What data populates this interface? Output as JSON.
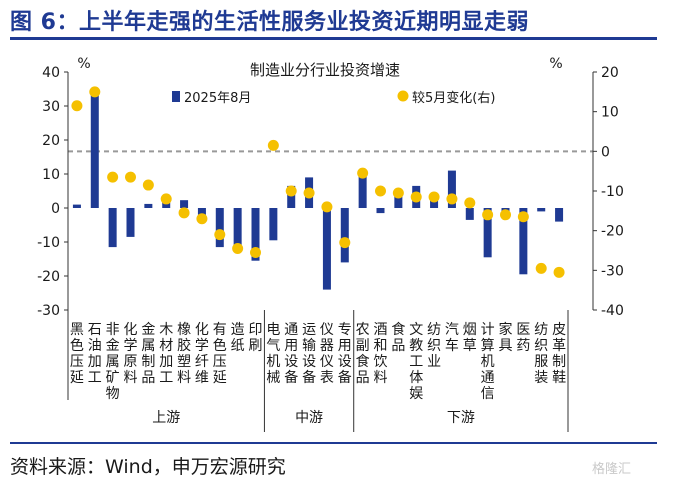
{
  "header": {
    "title": "图 6：上半年走强的生活性服务业投资近期明显走弱"
  },
  "footer": {
    "source": "资料来源：Wind，申万宏源研究",
    "watermark": "格隆汇"
  },
  "chart_data": {
    "type": "bar",
    "title": "制造业分行业投资增速",
    "ylabel_left": "%",
    "ylabel_right": "%",
    "ylim_left": [
      -30,
      40
    ],
    "ylim_right": [
      -40,
      20
    ],
    "yticks_left": [
      40,
      30,
      20,
      10,
      0,
      -10,
      -20,
      -30
    ],
    "yticks_right": [
      20,
      10,
      0,
      -10,
      -20,
      -30,
      -40
    ],
    "legend_position": "top",
    "categories": [
      "黑色压延",
      "石油加工",
      "非金属矿物",
      "化学原料",
      "金属制品",
      "木材加工",
      "橡胶塑料",
      "化学纤维",
      "有色压延",
      "造纸",
      "印刷",
      "电气机械",
      "通用设备",
      "运输设备",
      "仪器仪表",
      "专用设备",
      "农副食品",
      "酒和饮料",
      "食品",
      "文教工体娱",
      "纺织业",
      "汽车",
      "烟草",
      "计算机通信",
      "家具",
      "医药",
      "纺织服装",
      "皮革制鞋"
    ],
    "groups": [
      {
        "name": "上游",
        "start": 0,
        "end": 10
      },
      {
        "name": "中游",
        "start": 11,
        "end": 15
      },
      {
        "name": "下游",
        "start": 16,
        "end": 27
      }
    ],
    "series": [
      {
        "name": "2025年8月",
        "type": "bar",
        "axis": "left",
        "color": "#1f3a93",
        "values": [
          1,
          35,
          -11.5,
          -8.5,
          1.2,
          3,
          2.3,
          -2,
          -11.5,
          -11,
          -15.5,
          -9.5,
          6.5,
          9,
          -24,
          -16,
          11,
          -1.5,
          4,
          6.5,
          4,
          11,
          -3.5,
          -14.5,
          -2.5,
          -19.5,
          -1,
          -4
        ]
      },
      {
        "name": "较5月变化(右)",
        "type": "scatter",
        "axis": "right",
        "color": "#f5c000",
        "values": [
          11.5,
          15,
          -6.5,
          -6.5,
          -8.5,
          -12,
          -15.5,
          -17,
          -21,
          -24.5,
          -25.5,
          1.5,
          -10,
          -10.5,
          -14,
          -23,
          -5.5,
          -10,
          -10.5,
          -11.5,
          -11.5,
          -12,
          -13,
          -16,
          -16,
          -16.5,
          -29.5,
          -30.5
        ]
      }
    ],
    "reference_line": {
      "axis": "right",
      "value": 0,
      "style": "dashed",
      "color": "#999999"
    }
  }
}
